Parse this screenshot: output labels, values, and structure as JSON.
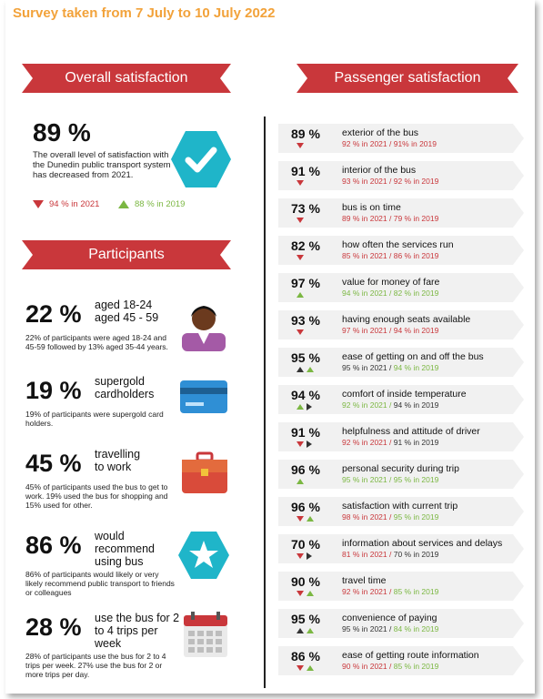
{
  "title": "Survey taken from 7 July to 10 July 2022",
  "overall": {
    "banner": "Overall satisfaction",
    "pct": "89 %",
    "desc": "The overall level of satisfaction with the Dunedin public transport system has decreased from 2021.",
    "y2021": "94 % in 2021",
    "y2019": "88 % in 2019"
  },
  "participants": {
    "banner": "Participants",
    "items": [
      {
        "pct": "22 %",
        "label": "aged 18-24\naged 45 - 59",
        "desc": "22% of participants were aged 18-24 and 45-59 followed by 13% aged 35-44 years.",
        "icon": "person-icon"
      },
      {
        "pct": "19 %",
        "label": "supergold\ncardholders",
        "desc": "19% of participants were supergold card holders.",
        "icon": "card-icon"
      },
      {
        "pct": "45 %",
        "label": "travelling\nto work",
        "desc": "45% of participants used the bus to get to work. 19% used the bus for shopping and 15% used for other.",
        "icon": "briefcase-icon"
      },
      {
        "pct": "86 %",
        "label": "would\nrecommend\nusing bus",
        "desc": "86% of participants would likely or very likely recommend public transport to friends or colleagues",
        "icon": "star-icon"
      },
      {
        "pct": "28 %",
        "label": "use the bus for 2\nto 4 trips per\nweek",
        "desc": "28% of participants use the bus for 2 to 4 trips per week. 27% use the bus for 2 or more trips per day.",
        "icon": "calendar-icon"
      }
    ]
  },
  "passenger": {
    "banner": "Passenger satisfaction",
    "rows": [
      {
        "pct": "89 %",
        "text": "exterior of the bus",
        "sub": "92 % in 2021 / 91% in 2019",
        "subColor": "red",
        "marks": [
          "down"
        ]
      },
      {
        "pct": "91 %",
        "text": "interior of the bus",
        "sub": "93 % in 2021 / 92 % in 2019",
        "subColor": "red",
        "marks": [
          "down"
        ]
      },
      {
        "pct": "73 %",
        "text": "bus is on time",
        "sub": "89 % in 2021 / 79 % in 2019",
        "subColor": "red",
        "marks": [
          "down"
        ]
      },
      {
        "pct": "82 %",
        "text": "how often the services run",
        "sub": "85 % in 2021 / 86 % in 2019",
        "subColor": "red",
        "marks": [
          "down"
        ]
      },
      {
        "pct": "97 %",
        "text": "value for money of fare",
        "sub": "94 % in 2021 / 82 % in 2019",
        "subColor": "green",
        "marks": [
          "up"
        ]
      },
      {
        "pct": "93 %",
        "text": "having enough seats available",
        "sub": "97 % in 2021 / 94 % in 2019",
        "subColor": "red",
        "marks": [
          "down"
        ]
      },
      {
        "pct": "95 %",
        "text": "ease of getting on and off the bus",
        "sub": "95 % in 2021 / 94 % in 2019",
        "subColor": "mixed-green",
        "marks": [
          "updark",
          "up"
        ]
      },
      {
        "pct": "94 %",
        "text": "comfort of inside temperature",
        "sub": "92 % in 2021 / 94 % in 2019",
        "subColor": "mixed-dark",
        "marks": [
          "up",
          "right"
        ]
      },
      {
        "pct": "91 %",
        "text": "helpfulness and attitude of driver",
        "sub": "92 % in 2021 / 91 % in 2019",
        "subColor": "mixed-dark",
        "marks": [
          "down",
          "right"
        ]
      },
      {
        "pct": "96 %",
        "text": "personal security during trip",
        "sub": "95 % in 2021 / 95 % in 2019",
        "subColor": "green",
        "marks": [
          "up"
        ]
      },
      {
        "pct": "96 %",
        "text": "satisfaction with current trip",
        "sub": "98 % in 2021 / 95 % in 2019",
        "subColor": "mixed-red",
        "marks": [
          "down",
          "up"
        ]
      },
      {
        "pct": "70 %",
        "text": "information about services and delays",
        "sub": "81 % in 2021 / 70 % in 2019",
        "subColor": "mixed-red2",
        "marks": [
          "down",
          "right"
        ]
      },
      {
        "pct": "90 %",
        "text": "travel time",
        "sub": "92 % in 2021 / 85 % in 2019",
        "subColor": "mixed-red",
        "marks": [
          "down",
          "up"
        ]
      },
      {
        "pct": "95 %",
        "text": "convenience of paying",
        "sub": "95 % in 2021 / 84 % in 2019",
        "subColor": "mixed-green",
        "marks": [
          "updark",
          "up"
        ]
      },
      {
        "pct": "86 %",
        "text": "ease of getting route information",
        "sub": "90 % in 2021 / 85 % in 2019",
        "subColor": "mixed-red",
        "marks": [
          "down",
          "up"
        ]
      }
    ]
  },
  "colors": {
    "accent": "#c9373b",
    "title": "#f2a23a",
    "positive": "#7bb742",
    "icon-teal": "#1fb5c9"
  }
}
